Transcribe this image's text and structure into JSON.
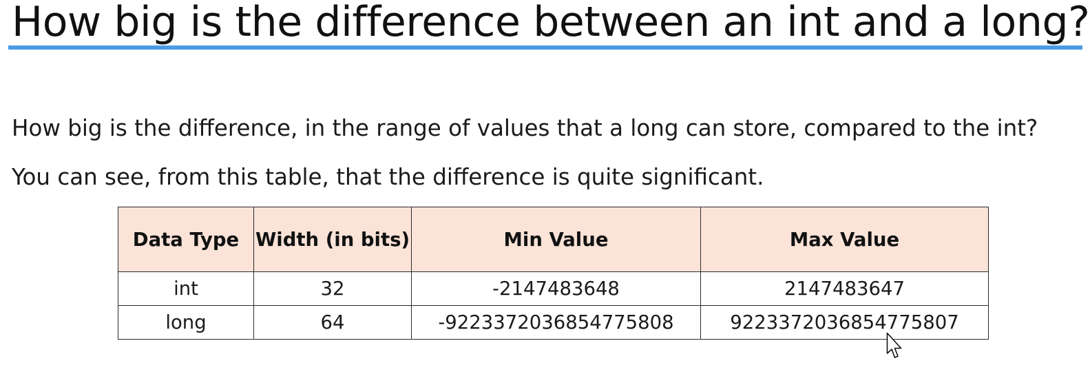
{
  "slide": {
    "title": "How big is the difference between an int and a long?",
    "paragraphs": [
      "How big is the difference,  in the range of values that a long can store, compared to the int?",
      "You can see, from this table, that the difference is quite significant."
    ]
  },
  "table": {
    "headers": [
      "Data Type",
      "Width (in bits)",
      "Min Value",
      "Max Value"
    ],
    "rows": [
      [
        "int",
        "32",
        "-2147483648",
        "2147483647"
      ],
      [
        "long",
        "64",
        "-9223372036854775808",
        "9223372036854775807"
      ]
    ],
    "header_background": "#fbe3d8"
  },
  "colors": {
    "title_rule": "#4a9be6",
    "text": "#1a1a1a"
  },
  "icons": {
    "cursor": "mouse-pointer-icon"
  }
}
